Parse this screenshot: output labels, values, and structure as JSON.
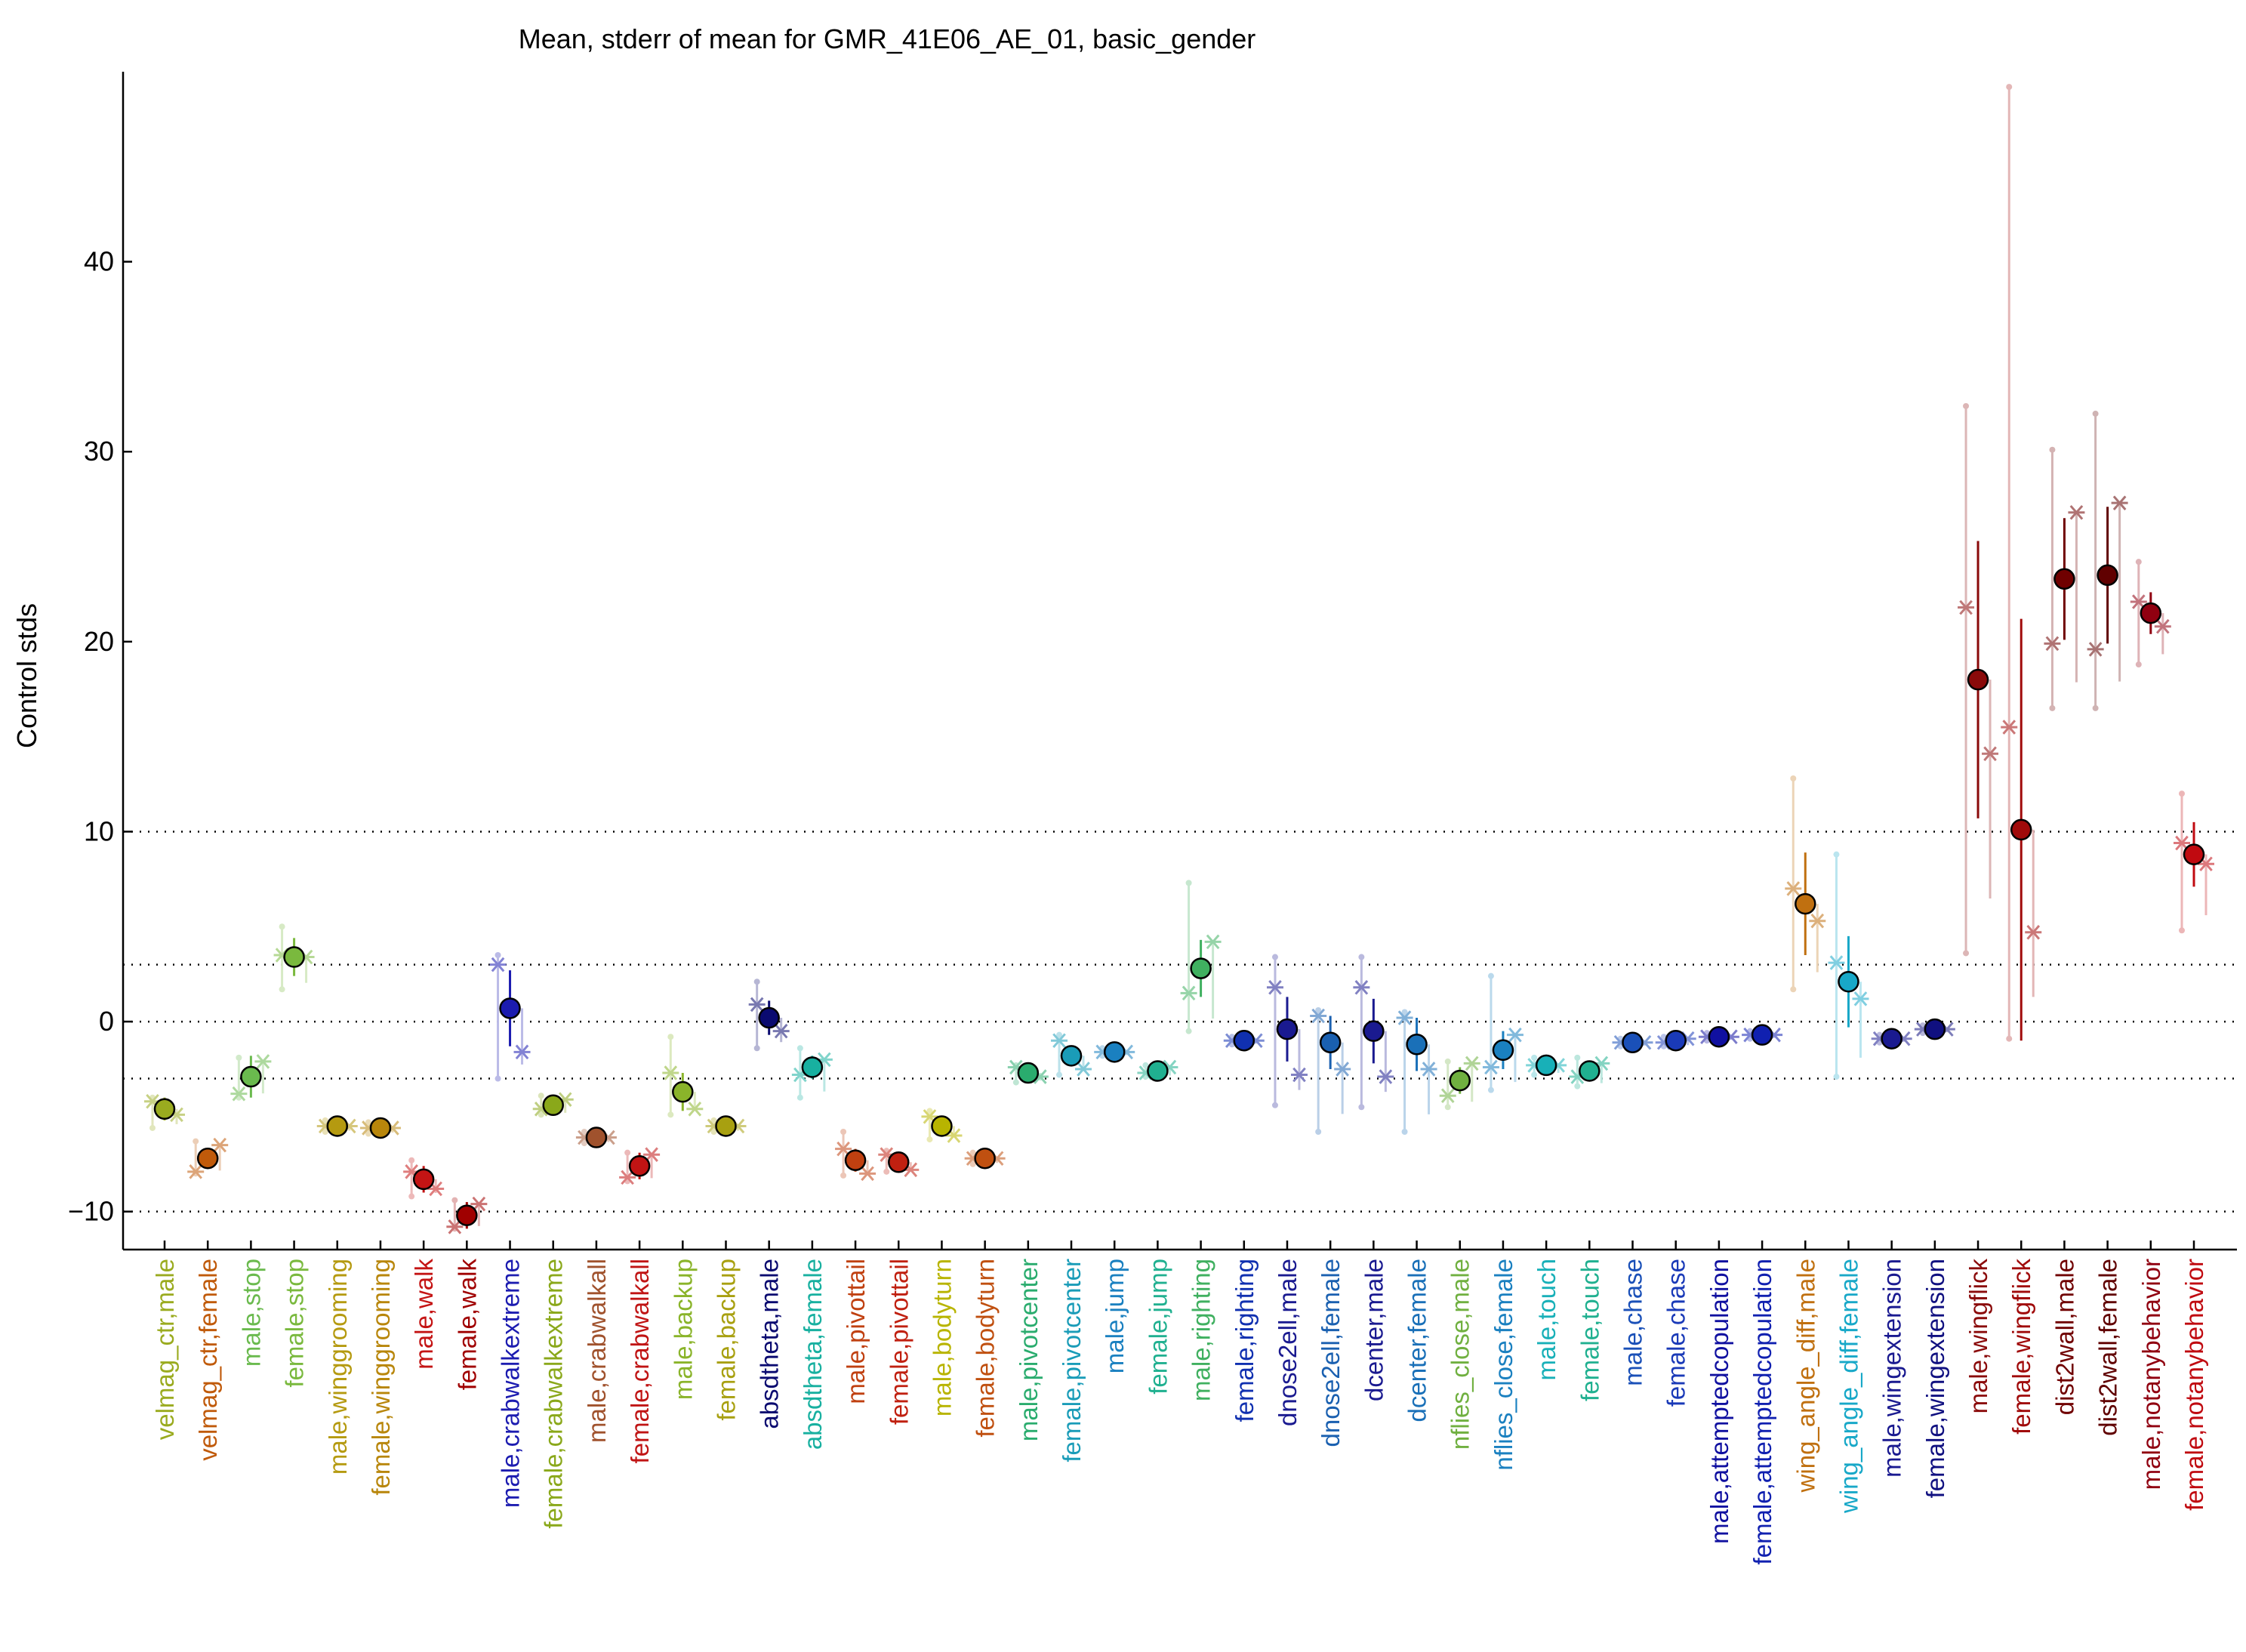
{
  "chart_data": {
    "type": "scatter",
    "title": "Mean, stderr of mean for GMR_41E06_AE_01, basic_gender",
    "xlabel": "",
    "ylabel": "Control stds",
    "ylim": [
      -12,
      50
    ],
    "yticks": [
      -10,
      0,
      10,
      20,
      30,
      40
    ],
    "reference_lines": [
      -10,
      -3,
      0,
      3,
      10
    ],
    "grid": false,
    "legend": "none",
    "points": [
      {
        "label": "velmag_ctr,male",
        "color": "#9aab1f",
        "mean": -4.6,
        "err": 0.6,
        "lo": -5.6,
        "hi": -4.0,
        "star_a": -4.2,
        "star_b": -4.9
      },
      {
        "label": "velmag_ctr,female",
        "color": "#c05a0a",
        "mean": -7.2,
        "err": 0.5,
        "lo": -8.0,
        "hi": -6.3,
        "star_a": -7.9,
        "star_b": -6.5
      },
      {
        "label": "male,stop",
        "color": "#6aba4e",
        "mean": -2.9,
        "err": 1.1,
        "lo": -4.0,
        "hi": -1.9,
        "star_a": -3.8,
        "star_b": -2.1
      },
      {
        "label": "female,stop",
        "color": "#7ab93e",
        "mean": 3.4,
        "err": 1.0,
        "lo": 1.7,
        "hi": 5.0,
        "star_a": 3.5,
        "star_b": 3.4
      },
      {
        "label": "male,winggrooming",
        "color": "#b59a10",
        "mean": -5.5,
        "err": 0.3,
        "lo": -5.8,
        "hi": -5.2,
        "star_a": -5.5,
        "star_b": -5.5
      },
      {
        "label": "female,winggrooming",
        "color": "#b8860b",
        "mean": -5.6,
        "err": 0.3,
        "lo": -5.9,
        "hi": -5.3,
        "star_a": -5.6,
        "star_b": -5.6
      },
      {
        "label": "male,walk",
        "color": "#c41414",
        "mean": -8.3,
        "err": 0.7,
        "lo": -9.2,
        "hi": -7.3,
        "star_a": -7.9,
        "star_b": -8.8
      },
      {
        "label": "female,walk",
        "color": "#a00000",
        "mean": -10.2,
        "err": 0.7,
        "lo": -10.9,
        "hi": -9.4,
        "star_a": -10.8,
        "star_b": -9.6
      },
      {
        "label": "male,crabwalkextreme",
        "color": "#1c1cb0",
        "mean": 0.7,
        "err": 2.0,
        "lo": -3.0,
        "hi": 3.5,
        "star_a": 3.0,
        "star_b": -1.6
      },
      {
        "label": "female,crabwalkextreme",
        "color": "#8aa81a",
        "mean": -4.4,
        "err": 0.4,
        "lo": -4.9,
        "hi": -3.9,
        "star_a": -4.6,
        "star_b": -4.1
      },
      {
        "label": "male,crabwalkall",
        "color": "#a0522d",
        "mean": -6.1,
        "err": 0.3,
        "lo": -6.4,
        "hi": -5.8,
        "star_a": -6.1,
        "star_b": -6.1
      },
      {
        "label": "female,crabwalkall",
        "color": "#c01414",
        "mean": -7.6,
        "err": 0.7,
        "lo": -8.4,
        "hi": -6.9,
        "star_a": -8.2,
        "star_b": -7.0
      },
      {
        "label": "male,backup",
        "color": "#8ab42a",
        "mean": -3.7,
        "err": 1.0,
        "lo": -4.9,
        "hi": -0.8,
        "star_a": -2.7,
        "star_b": -4.6
      },
      {
        "label": "female,backup",
        "color": "#a8a010",
        "mean": -5.5,
        "err": 0.3,
        "lo": -5.8,
        "hi": -5.2,
        "star_a": -5.5,
        "star_b": -5.5
      },
      {
        "label": "absdtheta,male",
        "color": "#0a0a70",
        "mean": 0.2,
        "err": 0.9,
        "lo": -1.4,
        "hi": 2.1,
        "star_a": 0.9,
        "star_b": -0.5
      },
      {
        "label": "absdtheta,female",
        "color": "#18b0a0",
        "mean": -2.4,
        "err": 0.6,
        "lo": -4.0,
        "hi": -1.4,
        "star_a": -2.8,
        "star_b": -2.0
      },
      {
        "label": "male,pivottail",
        "color": "#c04010",
        "mean": -7.3,
        "err": 0.6,
        "lo": -8.1,
        "hi": -5.8,
        "star_a": -6.7,
        "star_b": -8.0
      },
      {
        "label": "female,pivottail",
        "color": "#c02010",
        "mean": -7.4,
        "err": 0.4,
        "lo": -7.9,
        "hi": -6.8,
        "star_a": -7.0,
        "star_b": -7.8
      },
      {
        "label": "male,bodyturn",
        "color": "#b8b400",
        "mean": -5.5,
        "err": 0.5,
        "lo": -6.2,
        "hi": -4.7,
        "star_a": -5.0,
        "star_b": -6.0
      },
      {
        "label": "female,bodyturn",
        "color": "#c05010",
        "mean": -7.2,
        "err": 0.3,
        "lo": -7.5,
        "hi": -6.9,
        "star_a": -7.2,
        "star_b": -7.2
      },
      {
        "label": "male,pivotcenter",
        "color": "#2aac6e",
        "mean": -2.7,
        "err": 0.3,
        "lo": -3.2,
        "hi": -2.3,
        "star_a": -2.4,
        "star_b": -2.9
      },
      {
        "label": "female,pivotcenter",
        "color": "#1a9cb8",
        "mean": -1.8,
        "err": 0.5,
        "lo": -2.8,
        "hi": -0.7,
        "star_a": -1.0,
        "star_b": -2.5
      },
      {
        "label": "male,jump",
        "color": "#1a80c0",
        "mean": -1.6,
        "err": 0.2,
        "lo": -1.8,
        "hi": -1.4,
        "star_a": -1.6,
        "star_b": -1.6
      },
      {
        "label": "female,jump",
        "color": "#20b090",
        "mean": -2.6,
        "err": 0.3,
        "lo": -2.9,
        "hi": -2.3,
        "star_a": -2.7,
        "star_b": -2.4
      },
      {
        "label": "male,righting",
        "color": "#40b060",
        "mean": 2.8,
        "err": 1.5,
        "lo": -0.5,
        "hi": 7.3,
        "star_a": 1.5,
        "star_b": 4.2
      },
      {
        "label": "female,righting",
        "color": "#1030b0",
        "mean": -1.0,
        "err": 0.2,
        "lo": -1.2,
        "hi": -0.8,
        "star_a": -1.0,
        "star_b": -1.0
      },
      {
        "label": "dnose2ell,male",
        "color": "#1a1a90",
        "mean": -0.4,
        "err": 1.7,
        "lo": -4.4,
        "hi": 3.4,
        "star_a": 1.8,
        "star_b": -2.8
      },
      {
        "label": "dnose2ell,female",
        "color": "#1a60b0",
        "mean": -1.1,
        "err": 1.4,
        "lo": -5.8,
        "hi": 0.6,
        "star_a": 0.3,
        "star_b": -2.5
      },
      {
        "label": "dcenter,male",
        "color": "#1a1a90",
        "mean": -0.5,
        "err": 1.7,
        "lo": -4.5,
        "hi": 3.4,
        "star_a": 1.8,
        "star_b": -2.9
      },
      {
        "label": "dcenter,female",
        "color": "#1a70b8",
        "mean": -1.2,
        "err": 1.4,
        "lo": -5.8,
        "hi": 0.5,
        "star_a": 0.2,
        "star_b": -2.5
      },
      {
        "label": "nflies_close,male",
        "color": "#70b040",
        "mean": -3.1,
        "err": 0.7,
        "lo": -4.5,
        "hi": -2.1,
        "star_a": -3.9,
        "star_b": -2.2
      },
      {
        "label": "nflies_close,female",
        "color": "#1a80c0",
        "mean": -1.5,
        "err": 1.0,
        "lo": -3.6,
        "hi": 2.4,
        "star_a": -2.4,
        "star_b": -0.7
      },
      {
        "label": "male,touch",
        "color": "#18b0b8",
        "mean": -2.3,
        "err": 0.3,
        "lo": -2.8,
        "hi": -1.9,
        "star_a": -2.3,
        "star_b": -2.3
      },
      {
        "label": "female,touch",
        "color": "#20b090",
        "mean": -2.6,
        "err": 0.5,
        "lo": -3.4,
        "hi": -1.9,
        "star_a": -2.9,
        "star_b": -2.2
      },
      {
        "label": "male,chase",
        "color": "#1a50b8",
        "mean": -1.1,
        "err": 0.2,
        "lo": -1.3,
        "hi": -0.9,
        "star_a": -1.1,
        "star_b": -1.1
      },
      {
        "label": "female,chase",
        "color": "#1a3ab8",
        "mean": -1.0,
        "err": 0.2,
        "lo": -1.3,
        "hi": -0.8,
        "star_a": -1.1,
        "star_b": -0.9
      },
      {
        "label": "male,attemptedcopulation",
        "color": "#1010a0",
        "mean": -0.8,
        "err": 0.2,
        "lo": -1.0,
        "hi": -0.6,
        "star_a": -0.8,
        "star_b": -0.8
      },
      {
        "label": "female,attemptedcopulation",
        "color": "#1020b0",
        "mean": -0.7,
        "err": 0.2,
        "lo": -0.9,
        "hi": -0.5,
        "star_a": -0.7,
        "star_b": -0.7
      },
      {
        "label": "wing_angle_diff,male",
        "color": "#c07010",
        "mean": 6.2,
        "err": 2.7,
        "lo": 1.7,
        "hi": 12.8,
        "star_a": 7.0,
        "star_b": 5.3
      },
      {
        "label": "wing_angle_diff,female",
        "color": "#18a8c8",
        "mean": 2.1,
        "err": 2.4,
        "lo": -2.9,
        "hi": 8.8,
        "star_a": 3.1,
        "star_b": 1.2
      },
      {
        "label": "male,wingextension",
        "color": "#1a1a90",
        "mean": -0.9,
        "err": 0.2,
        "lo": -1.1,
        "hi": -0.7,
        "star_a": -0.9,
        "star_b": -0.9
      },
      {
        "label": "female,wingextension",
        "color": "#101080",
        "mean": -0.4,
        "err": 0.2,
        "lo": -0.6,
        "hi": -0.2,
        "star_a": -0.4,
        "star_b": -0.4
      },
      {
        "label": "male,wingflick",
        "color": "#8a0a0a",
        "mean": 18.0,
        "err": 7.3,
        "lo": 3.6,
        "hi": 32.4,
        "star_a": 21.8,
        "star_b": 14.1
      },
      {
        "label": "female,wingflick",
        "color": "#a00a0a",
        "mean": 10.1,
        "err": 11.1,
        "lo": -0.9,
        "hi": 49.2,
        "star_a": 15.5,
        "star_b": 4.7
      },
      {
        "label": "dist2wall,male",
        "color": "#700000",
        "mean": 23.3,
        "err": 3.2,
        "lo": 16.5,
        "hi": 30.1,
        "star_a": 19.9,
        "star_b": 26.8
      },
      {
        "label": "dist2wall,female",
        "color": "#600000",
        "mean": 23.5,
        "err": 3.6,
        "lo": 16.5,
        "hi": 32.0,
        "star_a": 19.6,
        "star_b": 27.3
      },
      {
        "label": "male,notanybehavior",
        "color": "#900010",
        "mean": 21.5,
        "err": 1.1,
        "lo": 18.8,
        "hi": 24.2,
        "star_a": 22.1,
        "star_b": 20.8
      },
      {
        "label": "female,notanybehavior",
        "color": "#c00a10",
        "mean": 8.8,
        "err": 1.7,
        "lo": 4.8,
        "hi": 12.0,
        "star_a": 9.4,
        "star_b": 8.3
      }
    ]
  }
}
